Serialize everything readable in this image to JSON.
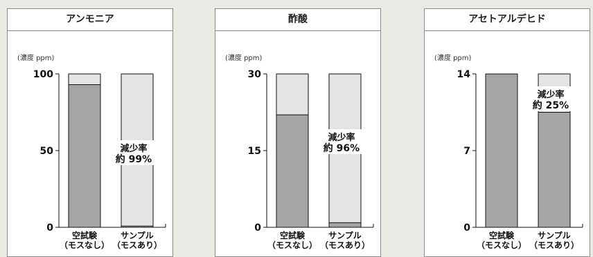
{
  "chart_data": [
    {
      "type": "bar",
      "title": "アンモニア",
      "unit_label": "(濃度 ppm)",
      "y_ticks": [
        "0",
        "50",
        "100"
      ],
      "ylim": [
        0,
        100
      ],
      "categories": [
        [
          "空試験",
          "（モスなし）"
        ],
        [
          "サンプル",
          "（モスあり）"
        ]
      ],
      "values": [
        93,
        0.8
      ],
      "annotation": [
        "減少率",
        "約 99%"
      ]
    },
    {
      "type": "bar",
      "title": "酢酸",
      "unit_label": "(濃度 ppm)",
      "y_ticks": [
        "0",
        "15",
        "30"
      ],
      "ylim": [
        0,
        30
      ],
      "categories": [
        [
          "空試験",
          "（モスなし）"
        ],
        [
          "サンプル",
          "（モスあり）"
        ]
      ],
      "values": [
        22,
        0.9
      ],
      "annotation": [
        "減少率",
        "約 96%"
      ]
    },
    {
      "type": "bar",
      "title": "アセトアルデヒド",
      "unit_label": "(濃度 ppm)",
      "y_ticks": [
        "0",
        "7",
        "14"
      ],
      "ylim": [
        0,
        14
      ],
      "categories": [
        [
          "空試験",
          "（モスなし）"
        ],
        [
          "サンプル",
          "（モスあり）"
        ]
      ],
      "values": [
        14,
        10.5
      ],
      "annotation": [
        "減少率",
        "約 25%"
      ]
    }
  ],
  "colors": {
    "bar_fill": "#a5a5a5",
    "bar_empty": "#e4e4e4",
    "bar_stroke": "#111111"
  }
}
